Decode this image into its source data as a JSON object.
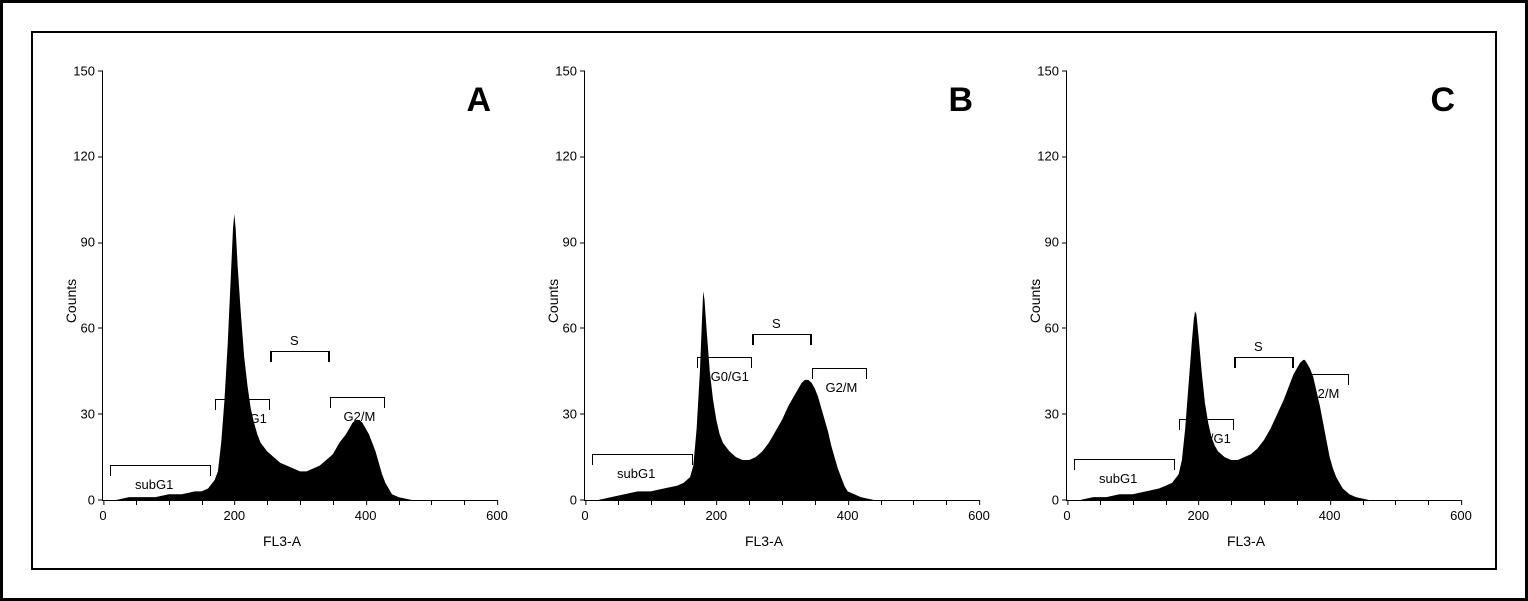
{
  "figure": {
    "background_color": "#ffffff",
    "outer_border_color": "#000000",
    "inner_border_color": "#000000",
    "panels": [
      "A",
      "B",
      "C"
    ],
    "panel_letter_fontsize": 34,
    "label_fontsize": 14,
    "tick_fontsize": 13,
    "gate_label_fontsize": 13,
    "series_color": "#000000"
  },
  "axes": {
    "ylabel": "Counts",
    "xlabel": "FL3-A",
    "ylim": [
      0,
      150
    ],
    "xlim": [
      0,
      600
    ],
    "yticks": [
      0,
      30,
      60,
      90,
      120,
      150
    ],
    "xticks": [
      0,
      200,
      400,
      600
    ],
    "xtick_minor_step": 50
  },
  "gates": {
    "subG1": {
      "label": "subG1",
      "x_from": 10,
      "x_to": 165
    },
    "G0G1": {
      "label": "G0/G1",
      "x_from": 170,
      "x_to": 255
    },
    "S": {
      "label": "S",
      "x_from": 255,
      "x_to": 345
    },
    "G2M": {
      "label": "G2/M",
      "x_from": 345,
      "x_to": 430
    }
  },
  "panelA": {
    "letter": "A",
    "gate_y": {
      "subG1": 12,
      "G0G1": 35,
      "S": 52,
      "G2M": 36
    },
    "histogram": [
      [
        0,
        0
      ],
      [
        20,
        0
      ],
      [
        40,
        1
      ],
      [
        60,
        1
      ],
      [
        80,
        1
      ],
      [
        100,
        2
      ],
      [
        120,
        2
      ],
      [
        140,
        3
      ],
      [
        150,
        3
      ],
      [
        160,
        4
      ],
      [
        170,
        7
      ],
      [
        175,
        10
      ],
      [
        180,
        20
      ],
      [
        185,
        35
      ],
      [
        190,
        55
      ],
      [
        195,
        80
      ],
      [
        198,
        95
      ],
      [
        200,
        100
      ],
      [
        202,
        95
      ],
      [
        205,
        82
      ],
      [
        210,
        65
      ],
      [
        215,
        50
      ],
      [
        220,
        40
      ],
      [
        225,
        32
      ],
      [
        230,
        27
      ],
      [
        235,
        23
      ],
      [
        240,
        20
      ],
      [
        250,
        17
      ],
      [
        260,
        15
      ],
      [
        270,
        13
      ],
      [
        280,
        12
      ],
      [
        290,
        11
      ],
      [
        300,
        10
      ],
      [
        310,
        10
      ],
      [
        320,
        11
      ],
      [
        330,
        12
      ],
      [
        340,
        14
      ],
      [
        350,
        16
      ],
      [
        360,
        20
      ],
      [
        370,
        23
      ],
      [
        375,
        25
      ],
      [
        380,
        27
      ],
      [
        385,
        28
      ],
      [
        390,
        28
      ],
      [
        395,
        27
      ],
      [
        400,
        25
      ],
      [
        405,
        23
      ],
      [
        410,
        20
      ],
      [
        415,
        17
      ],
      [
        420,
        13
      ],
      [
        425,
        9
      ],
      [
        430,
        6
      ],
      [
        435,
        4
      ],
      [
        440,
        2
      ],
      [
        450,
        1
      ],
      [
        470,
        0
      ]
    ]
  },
  "panelB": {
    "letter": "B",
    "gate_y": {
      "subG1": 16,
      "G0G1": 50,
      "S": 58,
      "G2M": 46
    },
    "histogram": [
      [
        0,
        0
      ],
      [
        20,
        0
      ],
      [
        40,
        1
      ],
      [
        60,
        2
      ],
      [
        80,
        3
      ],
      [
        100,
        3
      ],
      [
        120,
        4
      ],
      [
        140,
        5
      ],
      [
        150,
        6
      ],
      [
        160,
        8
      ],
      [
        165,
        12
      ],
      [
        170,
        25
      ],
      [
        175,
        45
      ],
      [
        178,
        62
      ],
      [
        180,
        73
      ],
      [
        182,
        70
      ],
      [
        185,
        60
      ],
      [
        190,
        45
      ],
      [
        195,
        35
      ],
      [
        200,
        28
      ],
      [
        205,
        23
      ],
      [
        210,
        20
      ],
      [
        220,
        17
      ],
      [
        230,
        15
      ],
      [
        240,
        14
      ],
      [
        250,
        14
      ],
      [
        260,
        15
      ],
      [
        270,
        17
      ],
      [
        280,
        20
      ],
      [
        290,
        24
      ],
      [
        300,
        28
      ],
      [
        310,
        33
      ],
      [
        320,
        37
      ],
      [
        325,
        39
      ],
      [
        330,
        41
      ],
      [
        335,
        42
      ],
      [
        340,
        42
      ],
      [
        345,
        41
      ],
      [
        350,
        39
      ],
      [
        355,
        36
      ],
      [
        360,
        32
      ],
      [
        365,
        28
      ],
      [
        370,
        24
      ],
      [
        375,
        19
      ],
      [
        380,
        15
      ],
      [
        385,
        11
      ],
      [
        390,
        8
      ],
      [
        395,
        5
      ],
      [
        400,
        3
      ],
      [
        410,
        2
      ],
      [
        420,
        1
      ],
      [
        440,
        0
      ]
    ]
  },
  "panelC": {
    "letter": "C",
    "gate_y": {
      "subG1": 14,
      "G0G1": 28,
      "S": 50,
      "G2M": 44
    },
    "histogram": [
      [
        0,
        0
      ],
      [
        20,
        0
      ],
      [
        40,
        1
      ],
      [
        60,
        1
      ],
      [
        80,
        2
      ],
      [
        100,
        2
      ],
      [
        120,
        3
      ],
      [
        140,
        4
      ],
      [
        150,
        5
      ],
      [
        160,
        6
      ],
      [
        170,
        9
      ],
      [
        175,
        14
      ],
      [
        180,
        25
      ],
      [
        185,
        40
      ],
      [
        190,
        55
      ],
      [
        193,
        63
      ],
      [
        195,
        66
      ],
      [
        197,
        65
      ],
      [
        200,
        58
      ],
      [
        205,
        45
      ],
      [
        210,
        34
      ],
      [
        215,
        27
      ],
      [
        220,
        22
      ],
      [
        225,
        19
      ],
      [
        230,
        17
      ],
      [
        240,
        15
      ],
      [
        250,
        14
      ],
      [
        260,
        14
      ],
      [
        270,
        15
      ],
      [
        280,
        16
      ],
      [
        290,
        18
      ],
      [
        300,
        21
      ],
      [
        310,
        25
      ],
      [
        320,
        30
      ],
      [
        330,
        35
      ],
      [
        335,
        38
      ],
      [
        340,
        41
      ],
      [
        345,
        44
      ],
      [
        350,
        46
      ],
      [
        355,
        48
      ],
      [
        360,
        49
      ],
      [
        362,
        49
      ],
      [
        365,
        48
      ],
      [
        370,
        46
      ],
      [
        375,
        43
      ],
      [
        380,
        38
      ],
      [
        385,
        33
      ],
      [
        390,
        27
      ],
      [
        395,
        21
      ],
      [
        400,
        15
      ],
      [
        405,
        11
      ],
      [
        410,
        8
      ],
      [
        415,
        6
      ],
      [
        420,
        4
      ],
      [
        430,
        2
      ],
      [
        440,
        1
      ],
      [
        460,
        0
      ]
    ]
  }
}
